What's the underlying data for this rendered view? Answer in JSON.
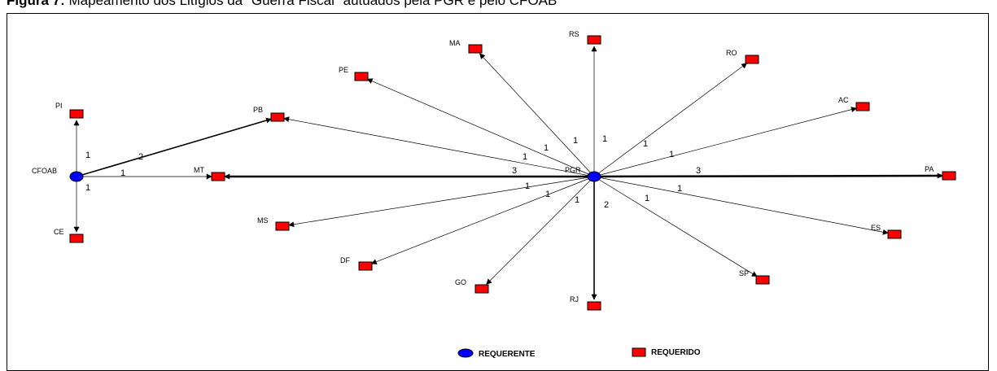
{
  "caption": {
    "prefix": "Figura 7:",
    "text": " Mapeamento dos Litígios da \"Guerra Fiscal\" autuados pela PGR e pelo CFOAB"
  },
  "colors": {
    "requerente": "#0000ff",
    "requerido": "#ff0000",
    "edge": "#000000"
  },
  "legend": {
    "requerente_label": "REQUERENTE",
    "requerido_label": "REQUERIDO"
  },
  "nodes": [
    {
      "id": "CFOAB",
      "label": "CFOAB",
      "type": "requerente"
    },
    {
      "id": "PGR",
      "label": "PGR",
      "type": "requerente"
    },
    {
      "id": "PI",
      "label": "PI",
      "type": "requerido"
    },
    {
      "id": "CE",
      "label": "CE",
      "type": "requerido"
    },
    {
      "id": "MT",
      "label": "MT",
      "type": "requerido"
    },
    {
      "id": "PB",
      "label": "PB",
      "type": "requerido"
    },
    {
      "id": "PE",
      "label": "PE",
      "type": "requerido"
    },
    {
      "id": "MA",
      "label": "MA",
      "type": "requerido"
    },
    {
      "id": "RS",
      "label": "RS",
      "type": "requerido"
    },
    {
      "id": "RO",
      "label": "RO",
      "type": "requerido"
    },
    {
      "id": "AC",
      "label": "AC",
      "type": "requerido"
    },
    {
      "id": "PA",
      "label": "PA",
      "type": "requerido"
    },
    {
      "id": "ES",
      "label": "ES",
      "type": "requerido"
    },
    {
      "id": "SP",
      "label": "SP",
      "type": "requerido"
    },
    {
      "id": "RJ",
      "label": "RJ",
      "type": "requerido"
    },
    {
      "id": "GO",
      "label": "GO",
      "type": "requerido"
    },
    {
      "id": "DF",
      "label": "DF",
      "type": "requerido"
    },
    {
      "id": "MS",
      "label": "MS",
      "type": "requerido"
    }
  ],
  "edges": [
    {
      "from": "CFOAB",
      "to": "PI",
      "label": "1"
    },
    {
      "from": "CFOAB",
      "to": "PB",
      "label": "2"
    },
    {
      "from": "CFOAB",
      "to": "MT",
      "label": "1"
    },
    {
      "from": "CFOAB",
      "to": "CE",
      "label": "1"
    },
    {
      "from": "PGR",
      "to": "MT",
      "label": "3"
    },
    {
      "from": "PGR",
      "to": "PB",
      "label": "1"
    },
    {
      "from": "PGR",
      "to": "PE",
      "label": "1"
    },
    {
      "from": "PGR",
      "to": "MA",
      "label": "1"
    },
    {
      "from": "PGR",
      "to": "RS",
      "label": "1"
    },
    {
      "from": "PGR",
      "to": "RO",
      "label": "1"
    },
    {
      "from": "PGR",
      "to": "AC",
      "label": "1"
    },
    {
      "from": "PGR",
      "to": "PA",
      "label": "3"
    },
    {
      "from": "PGR",
      "to": "ES",
      "label": "1"
    },
    {
      "from": "PGR",
      "to": "SP",
      "label": "1"
    },
    {
      "from": "PGR",
      "to": "RJ",
      "label": "2"
    },
    {
      "from": "PGR",
      "to": "GO",
      "label": "1"
    },
    {
      "from": "PGR",
      "to": "DF",
      "label": "1"
    },
    {
      "from": "PGR",
      "to": "MS",
      "label": "1"
    }
  ]
}
